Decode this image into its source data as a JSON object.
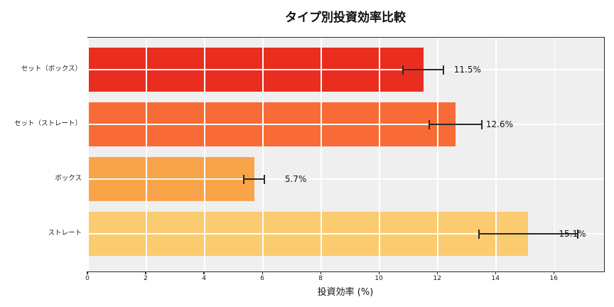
{
  "title": "タイプ別投資効率比較",
  "xlabel": "投資効率 (%)",
  "chart_data": {
    "type": "bar",
    "orientation": "horizontal",
    "title": "タイプ別投資効率比較",
    "xlabel": "投資効率 (%)",
    "ylabel": "",
    "categories": [
      "セット（ボックス）",
      "セット（ストレート）",
      "ボックス",
      "ストレート"
    ],
    "values": [
      11.5,
      12.6,
      5.7,
      15.1
    ],
    "errors": [
      0.7,
      0.9,
      0.35,
      1.7
    ],
    "value_labels": [
      "11.5%",
      "12.6%",
      "5.7%",
      "15.1%"
    ],
    "bar_colors": [
      "#e92e20",
      "#f96b36",
      "#faa44a",
      "#fbcb70"
    ],
    "xlim": [
      0,
      17.7
    ],
    "xticks": [
      0,
      2,
      4,
      6,
      8,
      10,
      12,
      14,
      16
    ],
    "grid": true,
    "plot_background": "#efefef",
    "grid_color": "#ffffff",
    "errorbar_color": "#2a2a2a",
    "legend": "none"
  }
}
